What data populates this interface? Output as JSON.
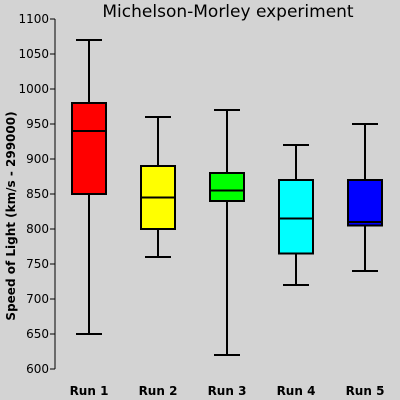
{
  "chart_data": {
    "type": "box",
    "title": "Michelson-Morley experiment",
    "xlabel": "",
    "ylabel": "Speed of Light (km/s - 299000)",
    "ylim": [
      600,
      1100
    ],
    "yticks": [
      600,
      650,
      700,
      750,
      800,
      850,
      900,
      950,
      1000,
      1050,
      1100
    ],
    "grid": false,
    "legend": "none",
    "categories": [
      "Run 1",
      "Run 2",
      "Run 3",
      "Run 4",
      "Run 5"
    ],
    "boxes": [
      {
        "label": "Run 1",
        "min": 650,
        "q1": 850,
        "median": 940,
        "q3": 980,
        "max": 1070,
        "color": "#ff0000"
      },
      {
        "label": "Run 2",
        "min": 760,
        "q1": 800,
        "median": 845,
        "q3": 890,
        "max": 960,
        "color": "#ffff00"
      },
      {
        "label": "Run 3",
        "min": 620,
        "q1": 840,
        "median": 855,
        "q3": 880,
        "max": 970,
        "color": "#00ff00"
      },
      {
        "label": "Run 4",
        "min": 720,
        "q1": 765,
        "median": 815,
        "q3": 870,
        "max": 920,
        "color": "#00ffff"
      },
      {
        "label": "Run 5",
        "min": 740,
        "q1": 805,
        "median": 810,
        "q3": 870,
        "max": 950,
        "color": "#0000ff"
      }
    ]
  }
}
